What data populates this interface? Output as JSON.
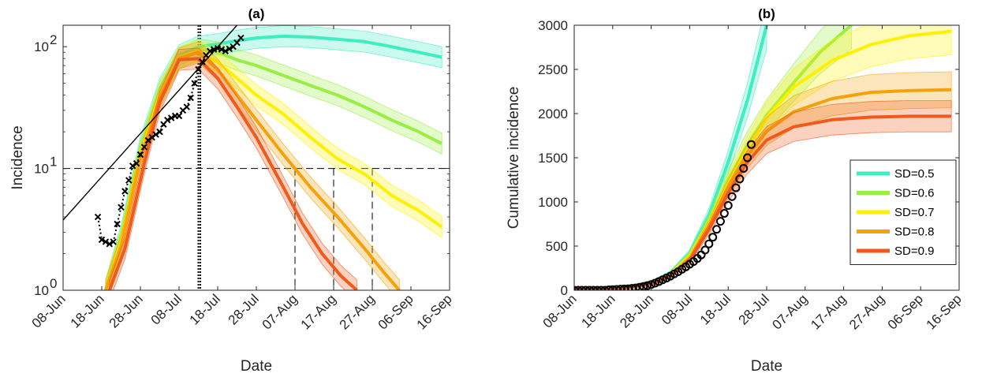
{
  "chart_data": [
    {
      "panel": "(a)",
      "type": "line",
      "title": "(a)",
      "xlabel": "Date",
      "ylabel": "Incidence",
      "yscale": "log",
      "ylim": [
        1,
        150
      ],
      "xlim": [
        "2020-06-08",
        "2020-09-16"
      ],
      "x_tick_labels": [
        "08-Jun",
        "18-Jun",
        "28-Jun",
        "08-Jul",
        "18-Jul",
        "28-Jul",
        "07-Aug",
        "17-Aug",
        "27-Aug",
        "06-Sep",
        "16-Sep"
      ],
      "y_tick_labels": [
        {
          "base": "10",
          "exp": "0"
        },
        {
          "base": "10",
          "exp": "1"
        },
        {
          "base": "10",
          "exp": "2"
        }
      ],
      "series": [
        {
          "name": "SD=0.5",
          "color": "#3deec0",
          "x": [
            "2020-06-19",
            "2020-06-23",
            "2020-06-28",
            "2020-07-03",
            "2020-07-08",
            "2020-07-13",
            "2020-07-18",
            "2020-07-23",
            "2020-07-28",
            "2020-08-04",
            "2020-08-11",
            "2020-08-18",
            "2020-08-25",
            "2020-09-01",
            "2020-09-08",
            "2020-09-14"
          ],
          "y": [
            1,
            2.8,
            15,
            45,
            85,
            100,
            105,
            112,
            118,
            122,
            120,
            115,
            110,
            100,
            90,
            82
          ]
        },
        {
          "name": "SD=0.6",
          "color": "#99ee44",
          "x": [
            "2020-06-19",
            "2020-06-23",
            "2020-06-28",
            "2020-07-03",
            "2020-07-08",
            "2020-07-13",
            "2020-07-18",
            "2020-07-23",
            "2020-07-28",
            "2020-08-04",
            "2020-08-11",
            "2020-08-18",
            "2020-08-25",
            "2020-09-01",
            "2020-09-08",
            "2020-09-14"
          ],
          "y": [
            1,
            2.6,
            14,
            42,
            80,
            95,
            90,
            78,
            70,
            58,
            48,
            40,
            32,
            25,
            20,
            16
          ]
        },
        {
          "name": "SD=0.7",
          "color": "#fff000",
          "x": [
            "2020-06-19",
            "2020-06-23",
            "2020-06-28",
            "2020-07-03",
            "2020-07-08",
            "2020-07-13",
            "2020-07-18",
            "2020-07-23",
            "2020-07-28",
            "2020-08-04",
            "2020-08-11",
            "2020-08-18",
            "2020-08-25",
            "2020-09-01",
            "2020-09-08",
            "2020-09-14"
          ],
          "y": [
            1,
            2.5,
            13,
            40,
            82,
            92,
            75,
            55,
            40,
            28,
            18,
            12,
            9,
            6,
            4.5,
            3.3
          ]
        },
        {
          "name": "SD=0.8",
          "color": "#f5a20a",
          "x": [
            "2020-06-19",
            "2020-06-23",
            "2020-06-28",
            "2020-07-03",
            "2020-07-08",
            "2020-07-13",
            "2020-07-18",
            "2020-07-23",
            "2020-07-28",
            "2020-08-04",
            "2020-08-11",
            "2020-08-18",
            "2020-08-25",
            "2020-08-30",
            "2020-09-03"
          ],
          "y": [
            1,
            2.3,
            12,
            38,
            80,
            90,
            65,
            40,
            25,
            13,
            7,
            4,
            2.2,
            1.4,
            1
          ]
        },
        {
          "name": "SD=0.9",
          "color": "#f05a1a",
          "x": [
            "2020-06-20",
            "2020-06-24",
            "2020-06-29",
            "2020-07-03",
            "2020-07-08",
            "2020-07-13",
            "2020-07-18",
            "2020-07-23",
            "2020-07-28",
            "2020-08-04",
            "2020-08-09",
            "2020-08-14",
            "2020-08-19",
            "2020-08-23"
          ],
          "y": [
            1,
            2.2,
            11,
            35,
            78,
            80,
            55,
            32,
            18,
            7,
            3.5,
            2,
            1.3,
            1
          ]
        }
      ],
      "observed": {
        "marker": "x",
        "color": "#000000",
        "x": [
          "2020-06-17",
          "2020-06-18",
          "2020-06-19",
          "2020-06-20",
          "2020-06-21",
          "2020-06-22",
          "2020-06-23",
          "2020-06-24",
          "2020-06-25",
          "2020-06-26",
          "2020-06-27",
          "2020-06-28",
          "2020-06-29",
          "2020-06-30",
          "2020-07-01",
          "2020-07-02",
          "2020-07-03",
          "2020-07-04",
          "2020-07-05",
          "2020-07-06",
          "2020-07-07",
          "2020-07-08",
          "2020-07-09",
          "2020-07-10",
          "2020-07-11",
          "2020-07-12",
          "2020-07-13",
          "2020-07-14",
          "2020-07-15",
          "2020-07-16",
          "2020-07-17",
          "2020-07-18",
          "2020-07-19",
          "2020-07-20",
          "2020-07-21",
          "2020-07-22",
          "2020-07-23",
          "2020-07-24"
        ],
        "y": [
          4,
          2.6,
          2.5,
          2.4,
          2.5,
          3.5,
          4.8,
          6.5,
          8,
          10.5,
          11,
          13,
          15,
          17,
          18,
          19,
          20,
          23,
          25,
          26,
          27,
          27,
          30,
          32,
          38,
          50,
          65,
          75,
          85,
          92,
          95,
          97,
          95,
          92,
          96,
          100,
          108,
          118
        ]
      },
      "fit_line": {
        "x": [
          "2020-06-06",
          "2020-07-23"
        ],
        "y": [
          3.2,
          150
        ],
        "color": "#000000"
      },
      "vertical_dotted_lines": [
        "2020-07-13",
        "2020-07-13 12:00"
      ],
      "threshold_line": {
        "y": 10,
        "style": "dashed"
      },
      "threshold_crossings": [
        "2020-08-07",
        "2020-08-17",
        "2020-08-27"
      ],
      "grid": false
    },
    {
      "panel": "(b)",
      "type": "line",
      "title": "(b)",
      "xlabel": "Date",
      "ylabel": "Cumulative incidence",
      "ylim": [
        0,
        3000
      ],
      "xlim": [
        "2020-06-08",
        "2020-09-16"
      ],
      "x_tick_labels": [
        "08-Jun",
        "18-Jun",
        "28-Jun",
        "08-Jul",
        "18-Jul",
        "28-Jul",
        "07-Aug",
        "17-Aug",
        "27-Aug",
        "06-Sep",
        "16-Sep"
      ],
      "y_tick_labels": [
        "0",
        "500",
        "1000",
        "1500",
        "2000",
        "2500",
        "3000"
      ],
      "legend_position": "lower-right",
      "series": [
        {
          "name": "SD=0.5",
          "color": "#3deec0",
          "x": [
            "2020-06-08",
            "2020-06-18",
            "2020-06-28",
            "2020-07-03",
            "2020-07-08",
            "2020-07-13",
            "2020-07-18",
            "2020-07-23",
            "2020-07-28"
          ],
          "y": [
            0,
            5,
            90,
            200,
            420,
            850,
            1450,
            2150,
            3000
          ]
        },
        {
          "name": "SD=0.6",
          "color": "#99ee44",
          "x": [
            "2020-06-08",
            "2020-06-18",
            "2020-06-28",
            "2020-07-03",
            "2020-07-08",
            "2020-07-13",
            "2020-07-18",
            "2020-07-23",
            "2020-07-28",
            "2020-08-04",
            "2020-08-11",
            "2020-08-19"
          ],
          "y": [
            0,
            5,
            85,
            190,
            400,
            780,
            1250,
            1650,
            1980,
            2350,
            2700,
            3000
          ]
        },
        {
          "name": "SD=0.7",
          "color": "#fff000",
          "x": [
            "2020-06-08",
            "2020-06-18",
            "2020-06-28",
            "2020-07-03",
            "2020-07-08",
            "2020-07-13",
            "2020-07-18",
            "2020-07-23",
            "2020-07-28",
            "2020-08-04",
            "2020-08-14",
            "2020-08-24",
            "2020-09-03",
            "2020-09-14"
          ],
          "y": [
            0,
            5,
            80,
            180,
            380,
            750,
            1200,
            1600,
            1950,
            2300,
            2600,
            2780,
            2880,
            2930
          ]
        },
        {
          "name": "SD=0.8",
          "color": "#f5a20a",
          "x": [
            "2020-06-08",
            "2020-06-18",
            "2020-06-28",
            "2020-07-03",
            "2020-07-08",
            "2020-07-13",
            "2020-07-18",
            "2020-07-23",
            "2020-07-28",
            "2020-08-04",
            "2020-08-14",
            "2020-08-24",
            "2020-09-03",
            "2020-09-14"
          ],
          "y": [
            0,
            5,
            75,
            170,
            360,
            720,
            1150,
            1520,
            1800,
            2020,
            2170,
            2240,
            2260,
            2270
          ]
        },
        {
          "name": "SD=0.9",
          "color": "#f05a1a",
          "x": [
            "2020-06-08",
            "2020-06-18",
            "2020-06-28",
            "2020-07-03",
            "2020-07-08",
            "2020-07-13",
            "2020-07-18",
            "2020-07-23",
            "2020-07-28",
            "2020-08-04",
            "2020-08-14",
            "2020-08-24",
            "2020-09-03",
            "2020-09-14"
          ],
          "y": [
            0,
            5,
            70,
            160,
            340,
            690,
            1100,
            1450,
            1700,
            1850,
            1930,
            1960,
            1970,
            1970
          ]
        }
      ],
      "observed": {
        "marker": "o",
        "color": "#000000",
        "x": [
          "2020-06-08",
          "2020-06-09",
          "2020-06-10",
          "2020-06-11",
          "2020-06-12",
          "2020-06-13",
          "2020-06-14",
          "2020-06-15",
          "2020-06-16",
          "2020-06-17",
          "2020-06-18",
          "2020-06-19",
          "2020-06-20",
          "2020-06-21",
          "2020-06-22",
          "2020-06-23",
          "2020-06-24",
          "2020-06-25",
          "2020-06-26",
          "2020-06-27",
          "2020-06-28",
          "2020-06-29",
          "2020-06-30",
          "2020-07-01",
          "2020-07-02",
          "2020-07-03",
          "2020-07-04",
          "2020-07-05",
          "2020-07-06",
          "2020-07-07",
          "2020-07-08",
          "2020-07-09",
          "2020-07-10",
          "2020-07-11",
          "2020-07-12",
          "2020-07-13",
          "2020-07-14",
          "2020-07-15",
          "2020-07-16",
          "2020-07-17",
          "2020-07-18",
          "2020-07-19",
          "2020-07-20",
          "2020-07-21",
          "2020-07-22",
          "2020-07-23",
          "2020-07-24"
        ],
        "y": [
          0,
          0,
          0,
          0,
          0,
          0,
          0,
          0,
          0,
          4,
          7,
          9,
          12,
          14,
          17,
          21,
          26,
          33,
          42,
          52,
          65,
          80,
          98,
          118,
          138,
          160,
          185,
          210,
          238,
          265,
          295,
          325,
          360,
          400,
          455,
          525,
          600,
          690,
          780,
          870,
          960,
          1060,
          1160,
          1260,
          1380,
          1500,
          1650
        ]
      },
      "grid": false
    }
  ]
}
